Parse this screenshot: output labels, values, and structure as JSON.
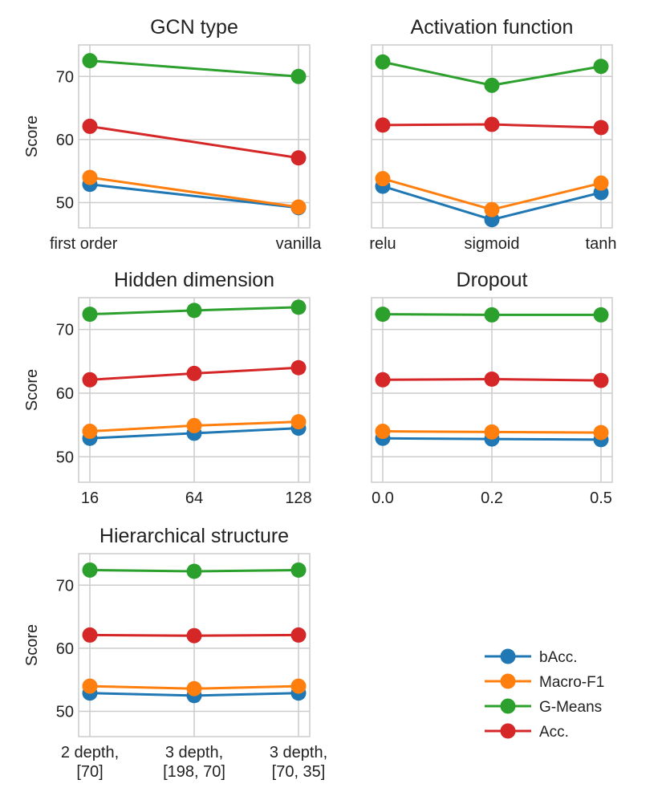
{
  "chart_data": [
    {
      "type": "line",
      "title": "GCN type",
      "ylabel": "Score",
      "ylim": [
        46,
        75
      ],
      "yticks": [
        50,
        60,
        70
      ],
      "categories": [
        "first order",
        "vanilla"
      ],
      "series": [
        {
          "name": "bAcc.",
          "values": [
            52.9,
            49.2
          ]
        },
        {
          "name": "Macro-F1",
          "values": [
            54.0,
            49.3
          ]
        },
        {
          "name": "G-Means",
          "values": [
            72.5,
            70.0
          ]
        },
        {
          "name": "Acc.",
          "values": [
            62.1,
            57.1
          ]
        }
      ]
    },
    {
      "type": "line",
      "title": "Activation function",
      "ylabel": "",
      "ylim": [
        46,
        75
      ],
      "yticks": [
        50,
        60,
        70
      ],
      "categories": [
        "relu",
        "sigmoid",
        "tanh"
      ],
      "series": [
        {
          "name": "bAcc.",
          "values": [
            52.6,
            47.3,
            51.6
          ]
        },
        {
          "name": "Macro-F1",
          "values": [
            53.8,
            48.9,
            53.1
          ]
        },
        {
          "name": "G-Means",
          "values": [
            72.3,
            68.6,
            71.6
          ]
        },
        {
          "name": "Acc.",
          "values": [
            62.3,
            62.4,
            61.9
          ]
        }
      ]
    },
    {
      "type": "line",
      "title": "Hidden dimension",
      "ylabel": "Score",
      "ylim": [
        46,
        75
      ],
      "yticks": [
        50,
        60,
        70
      ],
      "categories": [
        "16",
        "64",
        "128"
      ],
      "series": [
        {
          "name": "bAcc.",
          "values": [
            52.9,
            53.7,
            54.5
          ]
        },
        {
          "name": "Macro-F1",
          "values": [
            54.0,
            54.9,
            55.5
          ]
        },
        {
          "name": "G-Means",
          "values": [
            72.4,
            73.0,
            73.5
          ]
        },
        {
          "name": "Acc.",
          "values": [
            62.1,
            63.1,
            64.0
          ]
        }
      ]
    },
    {
      "type": "line",
      "title": "Dropout",
      "ylabel": "",
      "ylim": [
        46,
        75
      ],
      "yticks": [
        50,
        60,
        70
      ],
      "categories": [
        "0.0",
        "0.2",
        "0.5"
      ],
      "series": [
        {
          "name": "bAcc.",
          "values": [
            52.9,
            52.8,
            52.7
          ]
        },
        {
          "name": "Macro-F1",
          "values": [
            54.0,
            53.9,
            53.8
          ]
        },
        {
          "name": "G-Means",
          "values": [
            72.4,
            72.3,
            72.3
          ]
        },
        {
          "name": "Acc.",
          "values": [
            62.1,
            62.2,
            62.0
          ]
        }
      ]
    },
    {
      "type": "line",
      "title": "Hierarchical structure",
      "ylabel": "Score",
      "ylim": [
        46,
        75
      ],
      "yticks": [
        50,
        60,
        70
      ],
      "categories": [
        [
          "2 depth,",
          "[70]"
        ],
        [
          "3 depth,",
          "[198, 70]"
        ],
        [
          "3 depth,",
          "[70, 35]"
        ]
      ],
      "series": [
        {
          "name": "bAcc.",
          "values": [
            52.9,
            52.5,
            52.9
          ]
        },
        {
          "name": "Macro-F1",
          "values": [
            54.0,
            53.6,
            54.0
          ]
        },
        {
          "name": "G-Means",
          "values": [
            72.4,
            72.2,
            72.4
          ]
        },
        {
          "name": "Acc.",
          "values": [
            62.1,
            62.0,
            62.1
          ]
        }
      ]
    }
  ],
  "legend": {
    "placement": "bottom-right",
    "entries": [
      {
        "name": "bAcc.",
        "color": "#1f77b4"
      },
      {
        "name": "Macro-F1",
        "color": "#ff7f0e"
      },
      {
        "name": "G-Means",
        "color": "#2ca02c"
      },
      {
        "name": "Acc.",
        "color": "#d62728"
      }
    ]
  }
}
